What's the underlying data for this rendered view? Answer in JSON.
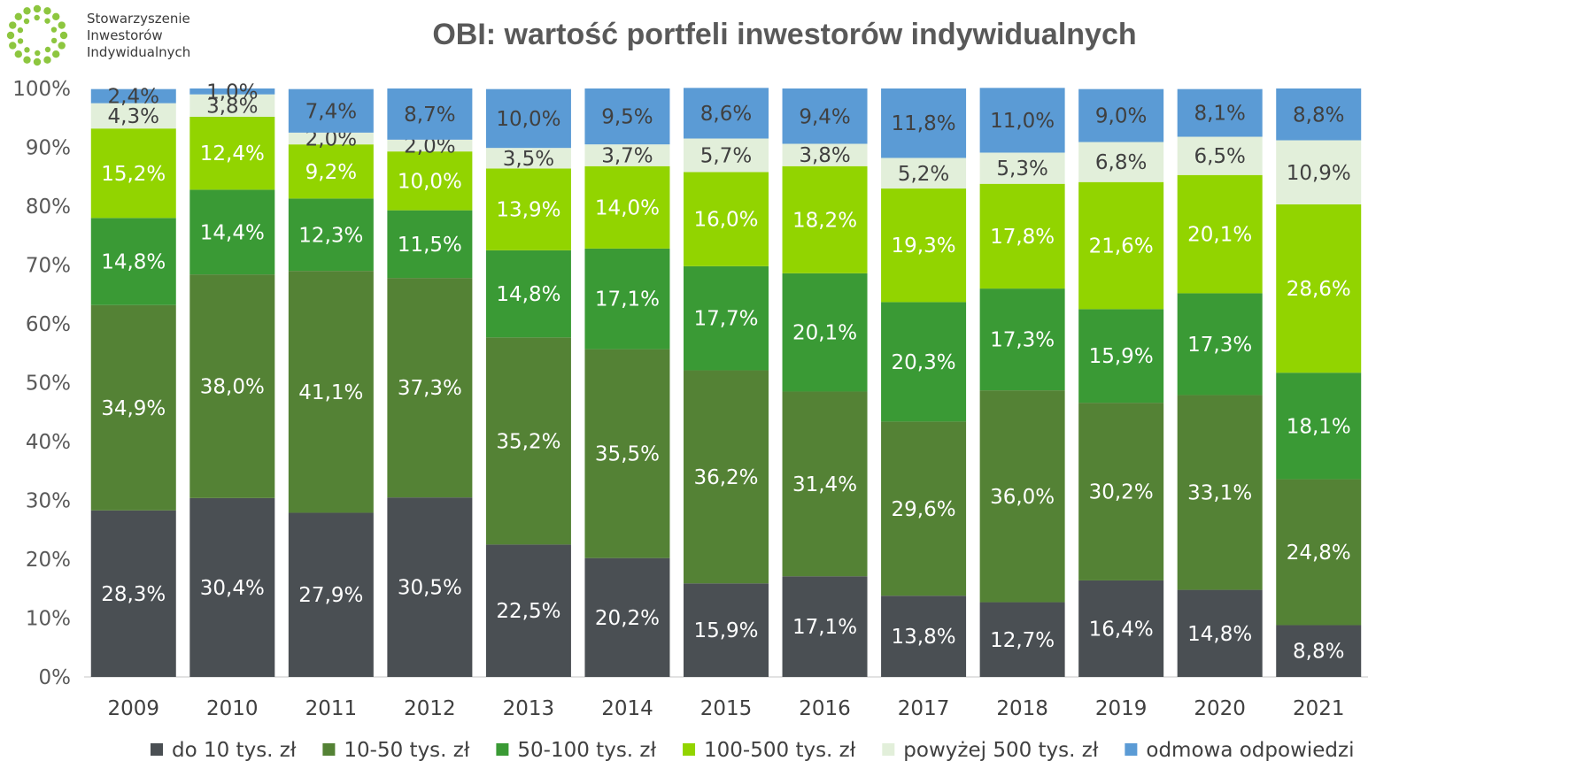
{
  "logo": {
    "lines": [
      "Stowarzyszenie",
      "Inwestorów",
      "Indywidualnych"
    ],
    "color": "#8dc63f"
  },
  "chart_data": {
    "type": "bar",
    "stacked": true,
    "title": "OBI: wartość portfeli inwestorów indywidualnych",
    "xlabel": "",
    "ylabel": "",
    "ylim": [
      0,
      100
    ],
    "y_ticks": [
      "0%",
      "10%",
      "20%",
      "30%",
      "40%",
      "50%",
      "60%",
      "70%",
      "80%",
      "90%",
      "100%"
    ],
    "categories": [
      "2009",
      "2010",
      "2011",
      "2012",
      "2013",
      "2014",
      "2015",
      "2016",
      "2017",
      "2018",
      "2019",
      "2020",
      "2021"
    ],
    "legend_position": "bottom",
    "grid": false,
    "series": [
      {
        "name": "do 10 tys. zł",
        "color": "#4a4f53",
        "label_color": "#ffffff",
        "values": [
          28.3,
          30.4,
          27.9,
          30.5,
          22.5,
          20.2,
          15.9,
          17.1,
          13.8,
          12.7,
          16.4,
          14.8,
          8.8
        ],
        "labels": [
          "28,3%",
          "30,4%",
          "27,9%",
          "30,5%",
          "22,5%",
          "20,2%",
          "15,9%",
          "17,1%",
          "13,8%",
          "12,7%",
          "16,4%",
          "14,8%",
          "8,8%"
        ]
      },
      {
        "name": "10-50 tys. zł",
        "color": "#548235",
        "label_color": "#ffffff",
        "values": [
          34.9,
          38.0,
          41.1,
          37.3,
          35.2,
          35.5,
          36.2,
          31.4,
          29.6,
          36.0,
          30.2,
          33.1,
          24.8
        ],
        "labels": [
          "34,9%",
          "38,0%",
          "41,1%",
          "37,3%",
          "35,2%",
          "35,5%",
          "36,2%",
          "31,4%",
          "29,6%",
          "36,0%",
          "30,2%",
          "33,1%",
          "24,8%"
        ]
      },
      {
        "name": "50-100 tys. zł",
        "color": "#3a9a35",
        "label_color": "#ffffff",
        "values": [
          14.8,
          14.4,
          12.3,
          11.5,
          14.8,
          17.1,
          17.7,
          20.1,
          20.3,
          17.3,
          15.9,
          17.3,
          18.1
        ],
        "labels": [
          "14,8%",
          "14,4%",
          "12,3%",
          "11,5%",
          "14,8%",
          "17,1%",
          "17,7%",
          "20,1%",
          "20,3%",
          "17,3%",
          "15,9%",
          "17,3%",
          "18,1%"
        ]
      },
      {
        "name": "100-500 tys. zł",
        "color": "#92d400",
        "label_color": "#ffffff",
        "values": [
          15.2,
          12.4,
          9.2,
          10.0,
          13.9,
          14.0,
          16.0,
          18.2,
          19.3,
          17.8,
          21.6,
          20.1,
          28.6
        ],
        "labels": [
          "15,2%",
          "12,4%",
          "9,2%",
          "10,0%",
          "13,9%",
          "14,0%",
          "16,0%",
          "18,2%",
          "19,3%",
          "17,8%",
          "21,6%",
          "20,1%",
          "28,6%"
        ]
      },
      {
        "name": "powyżej 500 tys. zł",
        "color": "#e2efda",
        "label_color": "#404040",
        "values": [
          4.3,
          3.8,
          2.0,
          2.0,
          3.5,
          3.7,
          5.7,
          3.8,
          5.2,
          5.3,
          6.8,
          6.5,
          10.9
        ],
        "labels": [
          "4,3%",
          "3,8%",
          "2,0%",
          "2,0%",
          "3,5%",
          "3,7%",
          "5,7%",
          "3,8%",
          "5,2%",
          "5,3%",
          "6,8%",
          "6,5%",
          "10,9%"
        ]
      },
      {
        "name": "odmowa odpowiedzi",
        "color": "#5b9bd5",
        "label_color": "#404040",
        "values": [
          2.4,
          1.0,
          7.4,
          8.7,
          10.0,
          9.5,
          8.6,
          9.4,
          11.8,
          11.0,
          9.0,
          8.1,
          8.8
        ],
        "labels": [
          "2,4%",
          "1,0%",
          "7,4%",
          "8,7%",
          "10,0%",
          "9,5%",
          "8,6%",
          "9,4%",
          "11,8%",
          "11,0%",
          "9,0%",
          "8,1%",
          "8,8%"
        ]
      }
    ]
  }
}
